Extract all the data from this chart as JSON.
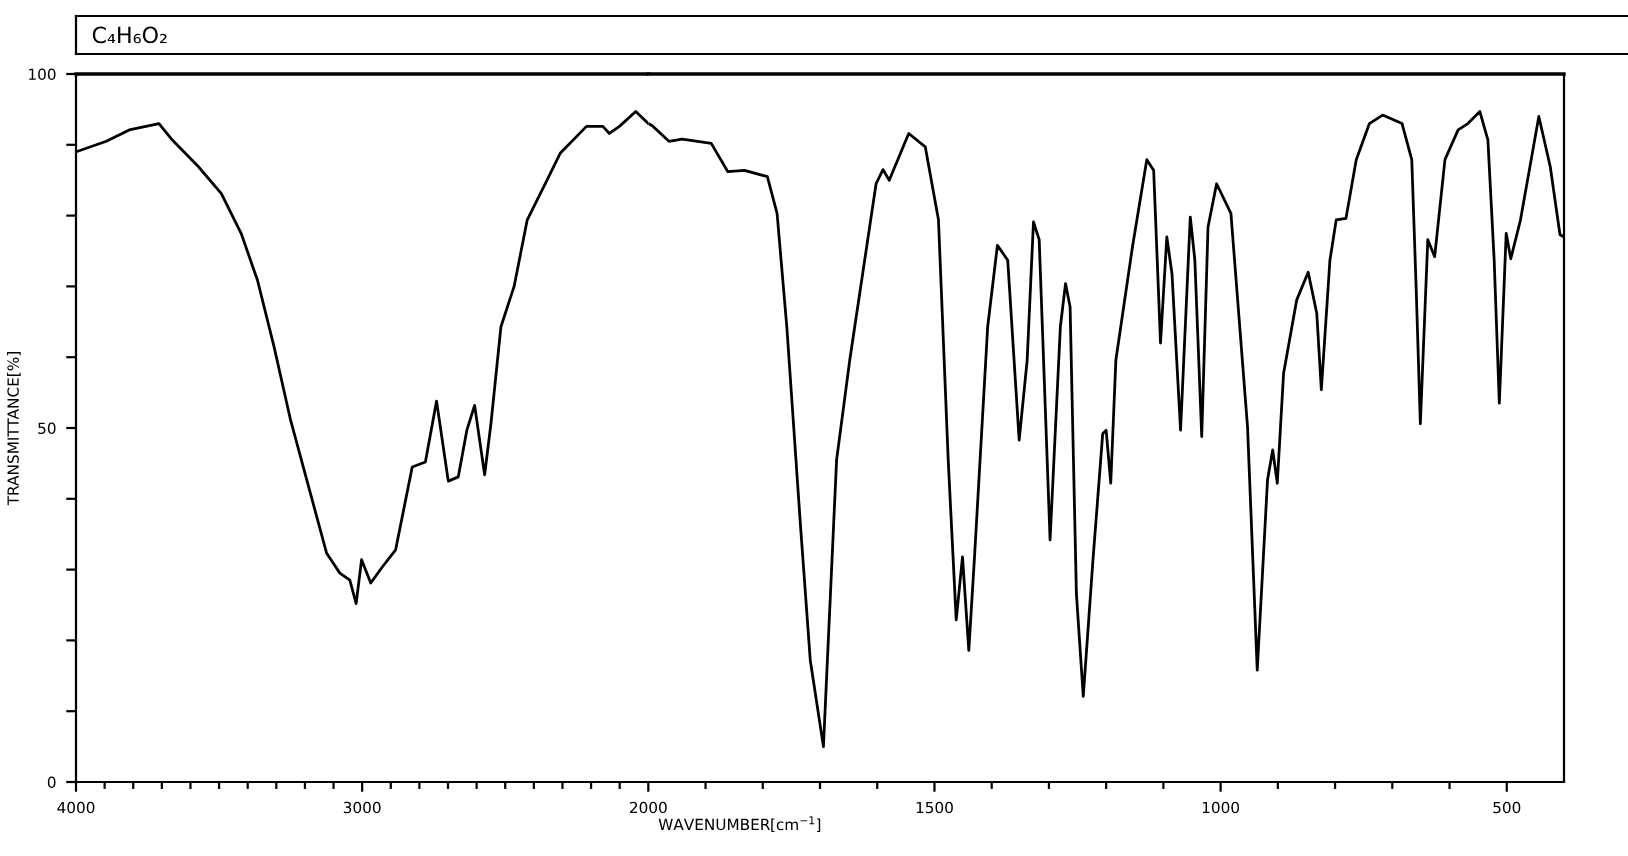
{
  "chart_data": [
    {
      "type": "line",
      "title": "C₄H₆O₂",
      "ylabel": "TRANSMITTANCE[%]",
      "x": [
        4000,
        3894,
        3814,
        3710,
        3664,
        3572,
        3492,
        3423,
        3366,
        3308,
        3250,
        3181,
        3124,
        3078,
        3043,
        3021,
        3002,
        2970,
        2929,
        2883,
        2825,
        2779,
        2740,
        2699,
        2664,
        2634,
        2607,
        2572,
        2550,
        2515,
        2469,
        2423,
        2354,
        2308,
        2216,
        2159,
        2136,
        2101,
        2044,
        2000
      ],
      "series": [
        {
          "color": "#000000",
          "values": [
            89.0,
            90.5,
            92.1,
            93.0,
            90.7,
            86.9,
            83.1,
            77.5,
            70.9,
            61.5,
            51.1,
            40.8,
            32.3,
            29.5,
            28.5,
            25.2,
            31.4,
            28.1,
            30.4,
            32.8,
            44.5,
            45.2,
            53.8,
            42.5,
            43.1,
            49.7,
            53.2,
            43.4,
            50.6,
            64.3,
            70.0,
            79.4,
            85.0,
            88.8,
            92.6,
            92.6,
            91.6,
            92.6,
            94.7,
            93.0
          ]
        }
      ],
      "xlim": [
        4000,
        2000
      ],
      "xticks": [
        4000,
        {
          "value": 3900,
          "label": null
        },
        {
          "value": 3800,
          "label": null
        },
        {
          "value": 3700,
          "label": null
        },
        {
          "value": 3600,
          "label": null
        },
        {
          "value": 3500,
          "label": null
        },
        {
          "value": 3400,
          "label": null
        },
        {
          "value": 3300,
          "label": null
        },
        {
          "value": 3200,
          "label": null
        },
        {
          "value": 3100,
          "label": null
        },
        3000,
        {
          "value": 2900,
          "label": null
        },
        {
          "value": 2800,
          "label": null
        },
        {
          "value": 2700,
          "label": null
        },
        {
          "value": 2600,
          "label": null
        },
        {
          "value": 2500,
          "label": null
        },
        {
          "value": 2400,
          "label": null
        },
        {
          "value": 2300,
          "label": null
        },
        {
          "value": 2200,
          "label": null
        },
        {
          "value": 2100,
          "label": null
        }
      ],
      "ylim": [
        0,
        100
      ],
      "yticks": [
        0,
        {
          "value": 10,
          "label": null
        },
        {
          "value": 20,
          "label": null
        },
        {
          "value": 30,
          "label": null
        },
        {
          "value": 40,
          "label": null
        },
        50,
        {
          "value": 60,
          "label": null
        },
        {
          "value": 70,
          "label": null
        },
        {
          "value": 80,
          "label": null
        },
        {
          "value": 90,
          "label": null
        },
        100
      ],
      "grid": false,
      "legend": false,
      "marker": "none",
      "line_style": "solid"
    },
    {
      "type": "line",
      "xlabel": "WAVENUMBER[cm$^{−1}$]",
      "x": [
        2000,
        1993,
        1964,
        1941,
        1890,
        1861,
        1832,
        1792,
        1775,
        1758,
        1734,
        1717,
        1694,
        1671,
        1648,
        1602,
        1590,
        1579,
        1545,
        1516,
        1493,
        1476,
        1462,
        1451,
        1440,
        1430,
        1407,
        1390,
        1372,
        1352,
        1338,
        1327,
        1317,
        1298,
        1280,
        1271,
        1263,
        1252,
        1240,
        1223,
        1206,
        1200,
        1192,
        1183,
        1154,
        1129,
        1117,
        1105,
        1094,
        1085,
        1070,
        1053,
        1045,
        1033,
        1022,
        1007,
        982,
        953,
        936,
        918,
        909,
        901,
        890,
        867,
        847,
        832,
        824,
        809,
        798,
        781,
        763,
        740,
        717,
        683,
        666,
        658,
        651,
        638,
        626,
        608,
        585,
        568,
        547,
        533,
        522,
        513,
        501,
        493,
        476,
        444,
        424,
        407,
        400
      ],
      "series": [
        {
          "color": "#000000",
          "values": [
            93.0,
            92.7,
            90.5,
            90.8,
            90.2,
            86.2,
            86.4,
            85.5,
            80.3,
            64.3,
            36.1,
            17.2,
            5.0,
            45.5,
            59.6,
            84.5,
            86.5,
            85.0,
            91.6,
            89.7,
            79.4,
            45.5,
            22.9,
            31.8,
            18.6,
            31.8,
            64.3,
            75.8,
            73.7,
            48.3,
            59.6,
            79.1,
            76.6,
            34.2,
            64.3,
            70.4,
            67.1,
            26.6,
            12.1,
            31.4,
            49.2,
            49.7,
            42.2,
            59.6,
            75.6,
            87.9,
            86.4,
            62.0,
            77.0,
            71.8,
            49.7,
            79.8,
            73.7,
            48.8,
            78.4,
            84.5,
            80.3,
            50.2,
            15.8,
            42.7,
            46.9,
            42.2,
            57.7,
            68.1,
            72.0,
            66.2,
            55.4,
            73.7,
            79.4,
            79.6,
            87.9,
            93.0,
            94.2,
            93.0,
            87.9,
            69.0,
            50.6,
            76.6,
            74.2,
            87.9,
            92.1,
            93.0,
            94.7,
            90.7,
            73.7,
            53.5,
            77.5,
            73.9,
            79.4,
            94.0,
            86.9,
            77.3,
            77.0
          ]
        }
      ],
      "xlim": [
        2000,
        400
      ],
      "xticks": [
        2000,
        {
          "value": 1900,
          "label": null
        },
        {
          "value": 1800,
          "label": null
        },
        {
          "value": 1700,
          "label": null
        },
        {
          "value": 1600,
          "label": null
        },
        1500,
        {
          "value": 1400,
          "label": null
        },
        {
          "value": 1300,
          "label": null
        },
        {
          "value": 1200,
          "label": null
        },
        {
          "value": 1100,
          "label": null
        },
        1000,
        {
          "value": 900,
          "label": null
        },
        {
          "value": 800,
          "label": null
        },
        {
          "value": 700,
          "label": null
        },
        {
          "value": 600,
          "label": null
        },
        500
      ],
      "ylim": [
        0,
        100
      ],
      "tick_labels": "x",
      "grid": false,
      "legend": false,
      "marker": "none",
      "line_style": "solid"
    }
  ]
}
